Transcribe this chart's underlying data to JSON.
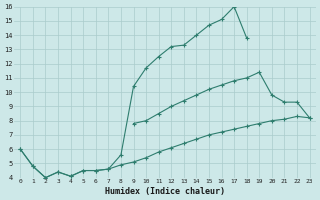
{
  "xlabel": "Humidex (Indice chaleur)",
  "xlim": [
    -0.5,
    23.5
  ],
  "ylim": [
    4,
    16
  ],
  "xticks": [
    0,
    1,
    2,
    3,
    4,
    5,
    6,
    7,
    8,
    9,
    10,
    11,
    12,
    13,
    14,
    15,
    16,
    17,
    18,
    19,
    20,
    21,
    22,
    23
  ],
  "yticks": [
    4,
    5,
    6,
    7,
    8,
    9,
    10,
    11,
    12,
    13,
    14,
    15,
    16
  ],
  "line_color": "#2e7d6e",
  "bg_color": "#cde8e8",
  "grid_color": "#aacccc",
  "line1_x": [
    0,
    1,
    2,
    3,
    4,
    5,
    6,
    7,
    8,
    9,
    10,
    11,
    12,
    13,
    14,
    15,
    16,
    17,
    18
  ],
  "line1_y": [
    6.0,
    4.8,
    4.0,
    4.4,
    4.1,
    4.5,
    4.5,
    4.6,
    5.6,
    10.4,
    11.7,
    12.5,
    13.2,
    13.3,
    14.0,
    14.7,
    15.1,
    16.0,
    13.8
  ],
  "line2_x": [
    0,
    1,
    2,
    3,
    4,
    5,
    6,
    7,
    8,
    9,
    10,
    11,
    12,
    13,
    14,
    15,
    16,
    17,
    18,
    19,
    20,
    21,
    22,
    23
  ],
  "line2_y": [
    6.0,
    4.8,
    4.0,
    4.4,
    4.1,
    4.5,
    4.5,
    4.6,
    4.9,
    5.1,
    5.4,
    5.8,
    6.1,
    6.4,
    6.7,
    7.0,
    7.2,
    7.4,
    7.6,
    7.8,
    8.0,
    8.1,
    8.3,
    8.2
  ],
  "line3_x": [
    9,
    10,
    11,
    12,
    13,
    14,
    15,
    16,
    17,
    18,
    19,
    20,
    21,
    22,
    23
  ],
  "line3_y": [
    7.8,
    8.0,
    8.5,
    9.0,
    9.4,
    9.8,
    10.2,
    10.5,
    10.8,
    11.0,
    11.4,
    9.8,
    9.3,
    9.3,
    8.2
  ]
}
